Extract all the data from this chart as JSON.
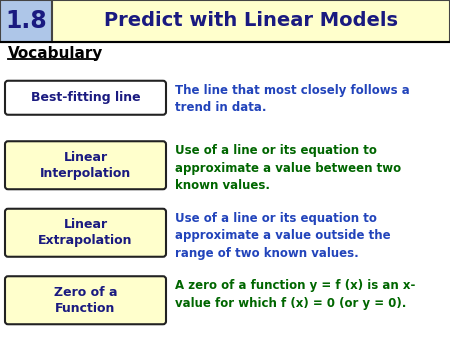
{
  "title_number": "1.8",
  "title_text": "Predict with Linear Models",
  "title_number_bg": "#aec6e8",
  "title_main_bg": "#ffffcc",
  "bg_color": "#ffffff",
  "vocabulary_label": "Vocabulary",
  "header_line_color": "#000000",
  "terms": [
    {
      "term": "Best-fitting line",
      "definition": "The line that most closely follows a\ntrend in data.",
      "term_color": "#1a1a80",
      "def_color": "#2244bb",
      "box_bg": "#ffffff",
      "box_border": "#222222"
    },
    {
      "term": "Linear\nInterpolation",
      "definition": "Use of a line or its equation to\napproximate a value between two\nknown values.",
      "term_color": "#1a1a80",
      "def_color": "#006600",
      "box_bg": "#ffffcc",
      "box_border": "#222222"
    },
    {
      "term": "Linear\nExtrapolation",
      "definition": "Use of a line or its equation to\napproximate a value outside the\nrange of two known values.",
      "term_color": "#1a1a80",
      "def_color": "#2244bb",
      "box_bg": "#ffffcc",
      "box_border": "#222222"
    },
    {
      "term": "Zero of a\nFunction",
      "definition": "A zero of a function y = f (x) is an x-\nvalue for which f (x) = 0 (or y = 0).",
      "term_color": "#1a1a80",
      "def_color": "#006600",
      "box_bg": "#ffffcc",
      "box_border": "#222222"
    }
  ]
}
